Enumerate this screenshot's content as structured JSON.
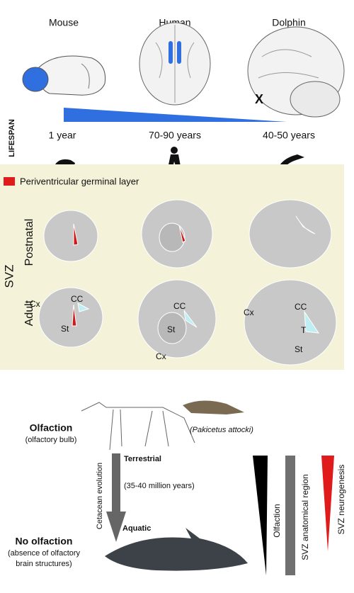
{
  "header": {
    "species": [
      "Mouse",
      "Human",
      "Dolphin"
    ],
    "marker": "X"
  },
  "lifespan": {
    "label": "LIFESPAN",
    "values": [
      "1 year",
      "70-90 years",
      "40-50 years"
    ]
  },
  "legend": {
    "label": "Periventricular germinal layer"
  },
  "svz": {
    "title": "SVZ",
    "rows": [
      "Postnatal",
      "Adult"
    ],
    "mouse_adult": [
      "Cx",
      "CC",
      "St"
    ],
    "human_adult": [
      "CC",
      "St",
      "Cx"
    ],
    "dolphin_adult": [
      "Cx",
      "CC",
      "T",
      "St"
    ]
  },
  "evolution": {
    "olfaction": "Olfaction",
    "olfaction_note": "(olfactory bulb)",
    "ancestor": "(Pakicetus attocki)",
    "terrestrial": "Terrestrial",
    "time": "(35-40 million years)",
    "axis": "Cetacean evolution",
    "aquatic": "Aquatic",
    "no_olfaction": "No olfaction",
    "no_olfaction_note": [
      "(absence of olfactory",
      "brain structures)"
    ],
    "bars": [
      "Olfaction",
      "SVZ anatomical region",
      "SVZ neurogenesis"
    ]
  }
}
